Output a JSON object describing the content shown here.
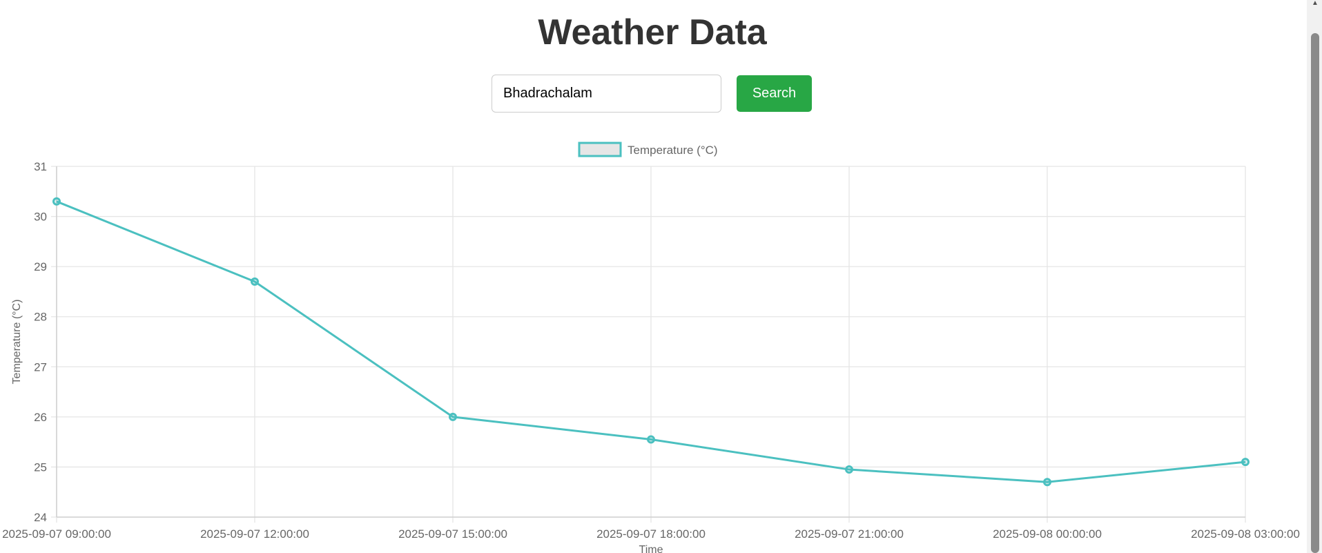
{
  "page": {
    "title": "Weather Data"
  },
  "search": {
    "value": "Bhadrachalam",
    "button_label": "Search"
  },
  "colors": {
    "line": "#4bc0c0",
    "legend_fill": "#e6e6e6",
    "button": "#28a745",
    "grid": "#e5e5e5",
    "text": "#666666"
  },
  "chart_data": {
    "type": "line",
    "title": "",
    "xlabel": "Time",
    "ylabel": "Temperature (°C)",
    "legend": "top-center",
    "grid": true,
    "ylim": [
      24,
      31
    ],
    "yticks": [
      "24",
      "25",
      "26",
      "27",
      "28",
      "29",
      "30",
      "31"
    ],
    "categories": [
      "2025-09-07 09:00:00",
      "2025-09-07 12:00:00",
      "2025-09-07 15:00:00",
      "2025-09-07 18:00:00",
      "2025-09-07 21:00:00",
      "2025-09-08 00:00:00",
      "2025-09-08 03:00:00"
    ],
    "series": [
      {
        "name": "Temperature (°C)",
        "values": [
          30.3,
          28.7,
          26.0,
          25.55,
          24.95,
          24.7,
          25.1
        ]
      }
    ]
  },
  "icons": {
    "scroll_up": "scroll-up-arrow-icon"
  }
}
